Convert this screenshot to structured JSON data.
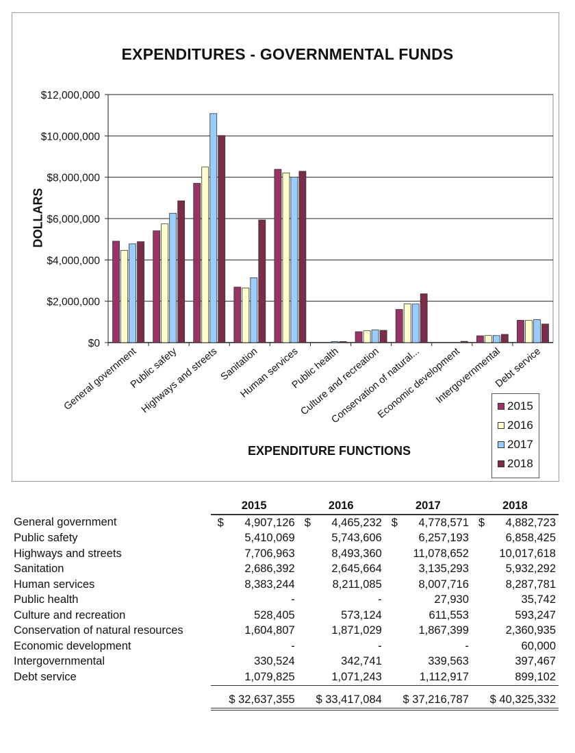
{
  "chart_data": {
    "type": "bar",
    "title": "EXPENDITURES - GOVERNMENTAL FUNDS",
    "xlabel": "EXPENDITURE FUNCTIONS",
    "ylabel": "DOLLARS",
    "ylim": [
      0,
      12000000
    ],
    "yticks": [
      "$0",
      "$2,000,000",
      "$4,000,000",
      "$6,000,000",
      "$8,000,000",
      "$10,000,000",
      "$12,000,000"
    ],
    "grid": true,
    "legend_position": "bottom-right",
    "categories": [
      "General government",
      "Public safety",
      "Highways and streets",
      "Sanitation",
      "Human services",
      "Public health",
      "Culture and recreation",
      "Conservation of natural...",
      "Economic development",
      "Intergovernmental",
      "Debt service"
    ],
    "series": [
      {
        "name": "2015",
        "color": "#993366",
        "values": [
          4907126,
          5410069,
          7706963,
          2686392,
          8383244,
          0,
          528405,
          1604807,
          0,
          330524,
          1079825
        ]
      },
      {
        "name": "2016",
        "color": "#FFFFCC",
        "values": [
          4465232,
          5743606,
          8493360,
          2645664,
          8211085,
          0,
          573124,
          1871029,
          0,
          342741,
          1071243
        ]
      },
      {
        "name": "2017",
        "color": "#99CCFF",
        "values": [
          4778571,
          6257193,
          11078652,
          3135293,
          8007716,
          27930,
          611553,
          1867399,
          0,
          339563,
          1112917
        ]
      },
      {
        "name": "2018",
        "color": "#7A2C4A",
        "values": [
          4882723,
          6858425,
          10017618,
          5932292,
          8287781,
          35742,
          593247,
          2360935,
          60000,
          397467,
          899102
        ]
      }
    ]
  },
  "table": {
    "years": [
      "2015",
      "2016",
      "2017",
      "2018"
    ],
    "currency_symbol": "$",
    "rows": [
      {
        "label": "General government",
        "values": [
          "4,907,126",
          "4,465,232",
          "4,778,571",
          "4,882,723"
        ]
      },
      {
        "label": "Public safety",
        "values": [
          "5,410,069",
          "5,743,606",
          "6,257,193",
          "6,858,425"
        ]
      },
      {
        "label": "Highways and streets",
        "values": [
          "7,706,963",
          "8,493,360",
          "11,078,652",
          "10,017,618"
        ]
      },
      {
        "label": "Sanitation",
        "values": [
          "2,686,392",
          "2,645,664",
          "3,135,293",
          "5,932,292"
        ]
      },
      {
        "label": "Human services",
        "values": [
          "8,383,244",
          "8,211,085",
          "8,007,716",
          "8,287,781"
        ]
      },
      {
        "label": "Public health",
        "values": [
          "-",
          "-",
          "27,930",
          "35,742"
        ]
      },
      {
        "label": "Culture and recreation",
        "values": [
          "528,405",
          "573,124",
          "611,553",
          "593,247"
        ]
      },
      {
        "label": "Conservation of natural resources",
        "values": [
          "1,604,807",
          "1,871,029",
          "1,867,399",
          "2,360,935"
        ]
      },
      {
        "label": "Economic development",
        "values": [
          "-",
          "-",
          "-",
          "60,000"
        ]
      },
      {
        "label": "Intergovernmental",
        "values": [
          "330,524",
          "342,741",
          "339,563",
          "397,467"
        ]
      },
      {
        "label": "Debt service",
        "values": [
          "1,079,825",
          "1,071,243",
          "1,112,917",
          "899,102"
        ]
      }
    ],
    "totals": [
      "$ 32,637,355",
      "$ 33,417,084",
      "$ 37,216,787",
      "$ 40,325,332"
    ]
  }
}
